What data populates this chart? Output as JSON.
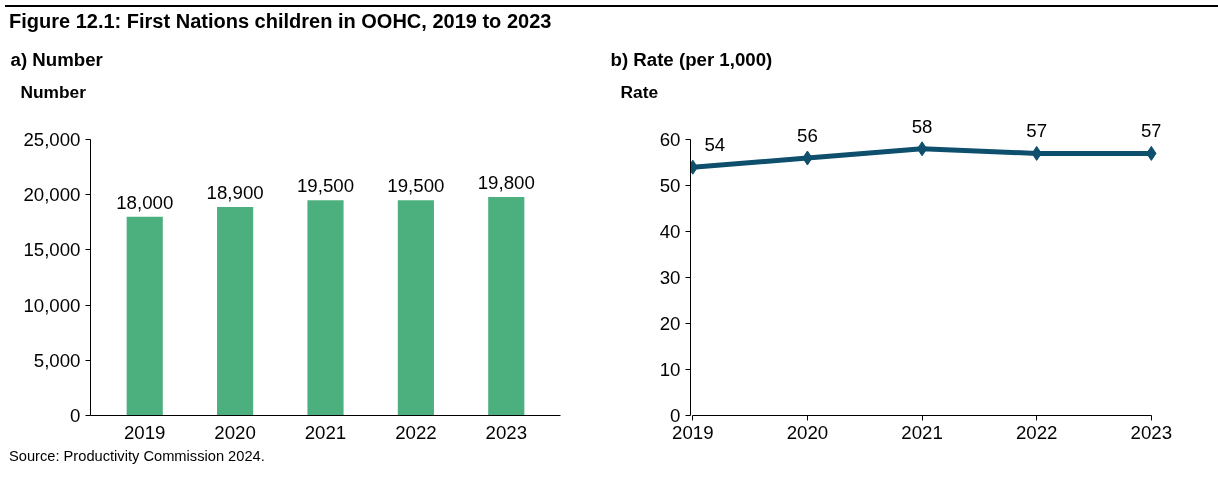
{
  "chart_data": [
    {
      "type": "bar",
      "title": "Figure 12.1: First Nations children in OOHC, 2019 to 2023",
      "subtitle": "a) Number",
      "ylabel": "Number",
      "categories": [
        "2019",
        "2020",
        "2021",
        "2022",
        "2023"
      ],
      "series": [
        {
          "color": "#4caf7e",
          "values": [
            18000,
            18900,
            19500,
            19500,
            19800
          ]
        }
      ],
      "ylim": [
        0,
        25000
      ],
      "yticks": [
        {
          "value": 0,
          "label": "0"
        },
        {
          "value": 5000,
          "label": "5,000"
        },
        {
          "value": 10000,
          "label": "10,000"
        },
        {
          "value": 15000,
          "label": "15,000"
        },
        {
          "value": 20000,
          "label": "20,000"
        },
        {
          "value": 25000,
          "label": "25,000"
        }
      ],
      "value_labels": [
        "18,000",
        "18,900",
        "19,500",
        "19,500",
        "19,800"
      ],
      "grid": false,
      "annotations": [
        "Source: Productivity Commission 2024."
      ]
    },
    {
      "type": "line",
      "subtitle": "b) Rate (per 1,000)",
      "ylabel": "Rate",
      "categories": [
        "2019",
        "2020",
        "2021",
        "2022",
        "2023"
      ],
      "series": [
        {
          "color": "#0e4f6e",
          "values": [
            54,
            56,
            58,
            57,
            57
          ]
        }
      ],
      "ylim": [
        0,
        60
      ],
      "yticks": [
        0,
        10,
        20,
        30,
        40,
        50,
        60
      ],
      "data_labels": true,
      "grid": false,
      "marker": "diamond",
      "line_style": "solid"
    }
  ]
}
